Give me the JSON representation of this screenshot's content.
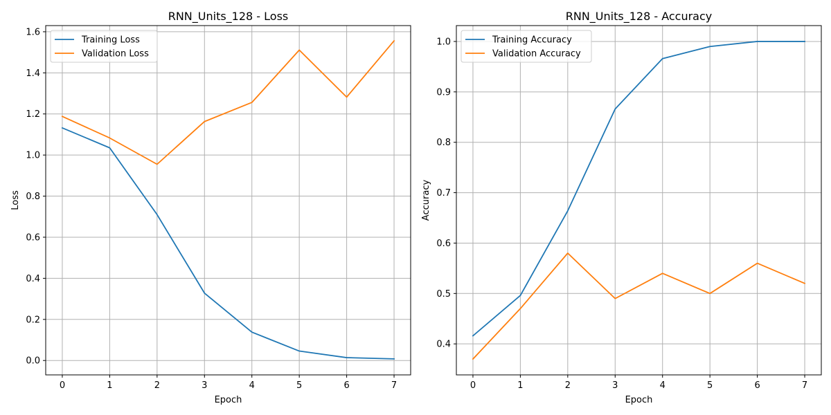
{
  "colors": {
    "training": "#1f77b4",
    "validation": "#ff7f0e"
  },
  "chart_data": [
    {
      "type": "line",
      "title": "RNN_Units_128 - Loss",
      "xlabel": "Epoch",
      "ylabel": "Loss",
      "x": [
        0,
        1,
        2,
        3,
        4,
        5,
        6,
        7
      ],
      "xlim": [
        -0.35,
        7.35
      ],
      "ylim": [
        -0.07,
        1.63
      ],
      "xticks": [
        0,
        1,
        2,
        3,
        4,
        5,
        6,
        7
      ],
      "yticks": [
        0.0,
        0.2,
        0.4,
        0.6,
        0.8,
        1.0,
        1.2,
        1.4,
        1.6
      ],
      "ytick_labels": [
        "0.0",
        "0.2",
        "0.4",
        "0.6",
        "0.8",
        "1.0",
        "1.2",
        "1.4",
        "1.6"
      ],
      "grid": true,
      "legend_position": "upper-left",
      "series": [
        {
          "name": "Training Loss",
          "color_key": "training",
          "values": [
            1.132,
            1.035,
            0.71,
            0.328,
            0.138,
            0.046,
            0.014,
            0.008
          ]
        },
        {
          "name": "Validation Loss",
          "color_key": "validation",
          "values": [
            1.188,
            1.083,
            0.955,
            1.163,
            1.256,
            1.511,
            1.282,
            1.556
          ]
        }
      ]
    },
    {
      "type": "line",
      "title": "RNN_Units_128 - Accuracy",
      "xlabel": "Epoch",
      "ylabel": "Accuracy",
      "x": [
        0,
        1,
        2,
        3,
        4,
        5,
        6,
        7
      ],
      "xlim": [
        -0.35,
        7.35
      ],
      "ylim": [
        0.3385,
        1.0315
      ],
      "xticks": [
        0,
        1,
        2,
        3,
        4,
        5,
        6,
        7
      ],
      "yticks": [
        0.4,
        0.5,
        0.6,
        0.7,
        0.8,
        0.9,
        1.0
      ],
      "ytick_labels": [
        "0.4",
        "0.5",
        "0.6",
        "0.7",
        "0.8",
        "0.9",
        "1.0"
      ],
      "grid": true,
      "legend_position": "upper-left",
      "series": [
        {
          "name": "Training Accuracy",
          "color_key": "training",
          "values": [
            0.416,
            0.496,
            0.664,
            0.866,
            0.966,
            0.99,
            1.0,
            1.0
          ]
        },
        {
          "name": "Validation Accuracy",
          "color_key": "validation",
          "values": [
            0.37,
            0.47,
            0.58,
            0.49,
            0.54,
            0.5,
            0.56,
            0.52
          ]
        }
      ]
    }
  ]
}
